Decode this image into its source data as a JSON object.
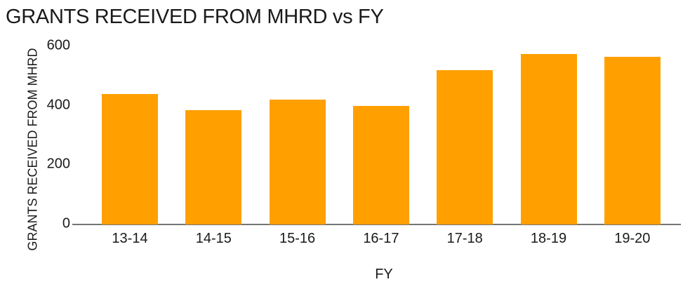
{
  "chart_data": {
    "type": "bar",
    "title": "GRANTS RECEIVED FROM MHRD vs FY",
    "xlabel": "FY",
    "ylabel": "GRANTS RECEIVED FROM MHRD",
    "categories": [
      "13-14",
      "14-15",
      "15-16",
      "16-17",
      "17-18",
      "18-19",
      "19-20"
    ],
    "values": [
      440,
      385,
      420,
      400,
      520,
      575,
      565
    ],
    "yticks": [
      0,
      200,
      400,
      600
    ],
    "ylim": [
      0,
      600
    ],
    "grid": false,
    "legend": false,
    "bar_color": "#ffa000",
    "axis_line_color": "#757575",
    "text_color": "#1a1a1a",
    "background_color": "#ffffff"
  }
}
